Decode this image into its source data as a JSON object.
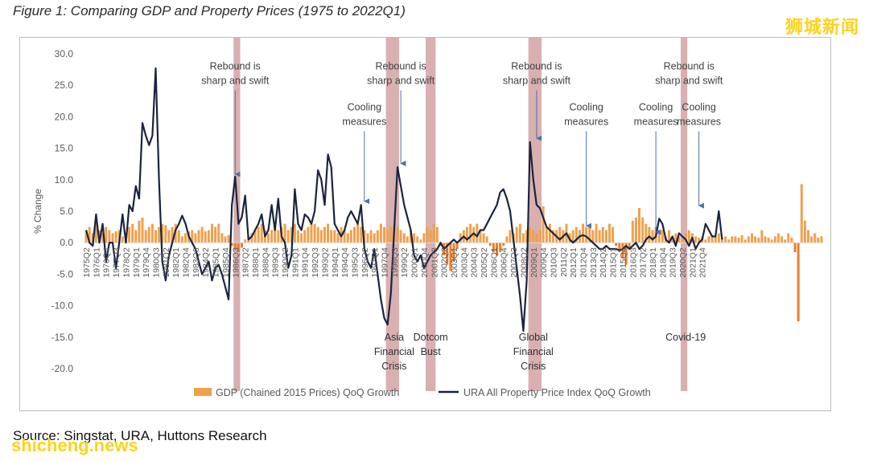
{
  "figure_title": "Figure 1: Comparing GDP and Property Prices (1975 to 2022Q1)",
  "watermark_top": "狮城新闻",
  "watermark_bottom": "shicheng.news",
  "source": "Source: Singstat, URA, Huttons Research",
  "colors": {
    "gdp": "#f0a04b",
    "gdp_negative": "#ef7d28",
    "price": "#1a2440",
    "band": "#c98e8e",
    "axis": "#d9d9d9",
    "text": "#595959",
    "arrow": "#4f6fa8"
  },
  "chart_data": {
    "type": "bar+line",
    "ylabel": "% Change",
    "ylim": [
      -20,
      30
    ],
    "yticks": [
      "30.0",
      "25.0",
      "20.0",
      "15.0",
      "10.0",
      "5.0",
      "0.0",
      "-5.0",
      "-10.0",
      "-15.0",
      "-20.0"
    ],
    "xlabel_ticks": [
      "1975Q2",
      "1976Q1",
      "1976Q4",
      "1977Q3",
      "1978Q2",
      "1979Q1",
      "1979Q4",
      "1980Q3",
      "1981Q2",
      "1982Q1",
      "1982Q4",
      "1983Q3",
      "1984Q2",
      "1985Q1",
      "1985Q4",
      "1986Q3",
      "1987Q2",
      "1988Q1",
      "1988Q4",
      "1989Q3",
      "1990Q2",
      "1991Q1",
      "1991Q4",
      "1992Q3",
      "1993Q2",
      "1994Q1",
      "1994Q4",
      "1995Q3",
      "1996Q2",
      "1997Q1",
      "1997Q4",
      "1998Q3",
      "1999Q2",
      "2000Q1",
      "2000Q4",
      "2001Q3",
      "2002Q2",
      "2003Q1",
      "2003Q4",
      "2004Q3",
      "2005Q2",
      "2006Q1",
      "2006Q4",
      "2007Q3",
      "2008Q2",
      "2009Q1",
      "2009Q4",
      "2010Q3",
      "2011Q2",
      "2012Q1",
      "2012Q4",
      "2013Q3",
      "2014Q2",
      "2015Q1",
      "2015Q4",
      "2016Q3",
      "2017Q2",
      "2018Q1",
      "2018Q4",
      "2019Q3",
      "2020Q2",
      "2021Q1",
      "2021Q4"
    ],
    "label_start": 0,
    "label_step": 3,
    "series": [
      {
        "name": "GDP (Chained 2015 Prices) QoQ Growth",
        "kind": "bar",
        "values": [
          2.0,
          2.5,
          1.5,
          3.0,
          2.0,
          1.5,
          2.5,
          2.0,
          1.5,
          1.8,
          2.0,
          1.0,
          1.5,
          2.5,
          3.0,
          2.0,
          3.5,
          4.0,
          2.0,
          2.5,
          3.0,
          2.0,
          2.5,
          3.0,
          2.8,
          2.0,
          2.5,
          3.0,
          2.0,
          1.0,
          1.5,
          1.8,
          2.0,
          1.5,
          2.0,
          2.5,
          1.8,
          2.0,
          3.0,
          2.5,
          3.0,
          1.5,
          1.0,
          1.2,
          -0.5,
          -1.0,
          -1.5,
          -0.8,
          0.5,
          1.0,
          1.5,
          2.0,
          2.5,
          3.0,
          2.0,
          1.5,
          2.0,
          2.5,
          2.0,
          2.5,
          3.0,
          2.0,
          2.5,
          3.0,
          2.0,
          1.5,
          2.0,
          2.5,
          3.5,
          3.0,
          2.5,
          2.0,
          2.5,
          3.0,
          2.0,
          2.0,
          1.5,
          2.5,
          2.0,
          1.5,
          2.0,
          2.5,
          3.0,
          2.5,
          2.0,
          1.5,
          2.0,
          1.5,
          2.0,
          3.0,
          2.5,
          2.0,
          2.5,
          3.0,
          2.5,
          2.0,
          1.5,
          1.0,
          2.0,
          1.5,
          1.0,
          0.5,
          1.5,
          2.5,
          2.0,
          3.0,
          2.5,
          -0.5,
          -2.0,
          -3.5,
          -4.5,
          -3.0,
          -1.0,
          1.5,
          2.0,
          2.5,
          3.0,
          2.5,
          3.0,
          2.0,
          1.5,
          1.0,
          -0.5,
          -1.5,
          -2.0,
          -1.5,
          -0.5,
          1.0,
          2.0,
          1.5,
          2.5,
          3.0,
          1.5,
          2.0,
          2.5,
          2.0,
          1.5,
          2.0,
          5.8,
          2.5,
          3.0,
          2.0,
          2.0,
          2.5,
          2.0,
          3.0,
          1.5,
          2.0,
          2.5,
          2.0,
          3.0,
          2.5,
          2.5,
          2.0,
          3.0,
          2.0,
          2.5,
          2.0,
          3.0,
          2.5,
          -0.5,
          -1.5,
          -2.5,
          -3.5,
          -1.0,
          3.5,
          4.0,
          5.5,
          4.0,
          3.0,
          2.5,
          2.0,
          2.5,
          1.5,
          2.0,
          1.0,
          2.0,
          1.0,
          1.5,
          1.0,
          0.5,
          1.5,
          2.0,
          1.5,
          1.0,
          0.8,
          1.0,
          0.5,
          1.0,
          1.2,
          1.0,
          1.5,
          0.8,
          1.0,
          0.5,
          1.0,
          1.0,
          0.8,
          1.2,
          0.5,
          1.0,
          1.5,
          1.0,
          0.8,
          2.0,
          1.0,
          0.8,
          0.5,
          1.0,
          1.5,
          1.0,
          0.5,
          1.5,
          0.8,
          -1.5,
          -12.5,
          9.3,
          3.5,
          2.0,
          1.0,
          1.5,
          0.8,
          1.0
        ]
      },
      {
        "name": "URA All Property Price Index QoQ Growth",
        "kind": "line",
        "values": [
          2.0,
          0.0,
          -0.5,
          4.5,
          0.0,
          3.0,
          -3.0,
          0.0,
          0.0,
          -4.0,
          0.0,
          4.5,
          0.0,
          6.0,
          5.0,
          9.0,
          7.0,
          19.0,
          17.0,
          15.5,
          17.0,
          27.7,
          10.0,
          -3.0,
          -6.0,
          -2.0,
          0.0,
          2.0,
          3.0,
          4.3,
          3.0,
          1.0,
          0.0,
          -1.0,
          -3.0,
          -5.0,
          -4.0,
          -3.0,
          -6.0,
          -4.0,
          -3.5,
          -5.0,
          -7.0,
          -9.0,
          6.0,
          10.5,
          3.0,
          4.0,
          7.5,
          0.5,
          1.0,
          2.0,
          3.0,
          4.5,
          1.0,
          2.0,
          6.0,
          2.0,
          7.0,
          1.0,
          0.0,
          -4.0,
          -2.0,
          8.5,
          3.0,
          2.0,
          4.5,
          4.0,
          3.0,
          5.0,
          11.5,
          10.0,
          6.0,
          14.0,
          12.0,
          3.0,
          2.0,
          1.0,
          2.0,
          4.0,
          5.0,
          4.0,
          3.0,
          6.0,
          -1.0,
          -3.0,
          -4.0,
          -1.0,
          -5.0,
          -9.0,
          -12.0,
          -13.0,
          -8.0,
          2.0,
          12.0,
          9.0,
          6.0,
          4.0,
          2.0,
          -2.0,
          -3.0,
          -2.0,
          -4.0,
          -3.0,
          -2.0,
          -1.5,
          -1.0,
          0.0,
          -1.0,
          -0.5,
          0.0,
          0.5,
          0.0,
          0.5,
          1.0,
          0.5,
          1.0,
          1.5,
          1.0,
          2.0,
          2.0,
          3.0,
          4.0,
          5.0,
          6.0,
          8.0,
          8.5,
          7.0,
          5.0,
          0.5,
          -4.0,
          -8.5,
          -14.0,
          -6.0,
          16.0,
          10.0,
          6.0,
          5.5,
          4.0,
          2.5,
          2.0,
          1.5,
          1.0,
          0.5,
          1.0,
          1.5,
          0.5,
          0.0,
          0.5,
          1.0,
          1.2,
          1.0,
          0.5,
          0.0,
          -0.5,
          -1.0,
          -1.0,
          -0.5,
          -1.0,
          -1.0,
          -1.0,
          -1.2,
          -1.0,
          -0.5,
          -1.0,
          -0.5,
          0.0,
          -1.0,
          -0.5,
          0.5,
          1.0,
          0.5,
          1.0,
          3.8,
          3.0,
          0.5,
          0.0,
          1.0,
          -0.5,
          1.5,
          1.0,
          0.5,
          -0.5,
          0.8,
          -1.0,
          0.0,
          0.5,
          3.0,
          2.0,
          1.0,
          1.0,
          5.0,
          0.5
        ]
      }
    ],
    "shaded_periods": [
      {
        "start_quarter": 45,
        "end_quarter": 46
      },
      {
        "start_quarter": 91,
        "end_quarter": 94
      },
      {
        "start_quarter": 103,
        "end_quarter": 105
      },
      {
        "start_quarter": 134,
        "end_quarter": 137
      },
      {
        "start_quarter": 180,
        "end_quarter": 181
      }
    ],
    "annotations": [
      {
        "lines": [
          "Rebound is",
          "sharp and swift"
        ],
        "quarter": 45,
        "y_text": 27.5,
        "arrow_to": 10.5
      },
      {
        "lines": [
          "Cooling",
          "measures"
        ],
        "quarter": 84,
        "y_text": 21.0,
        "arrow_to": 6.2
      },
      {
        "lines": [
          "Rebound is",
          "sharp and swift"
        ],
        "quarter": 95,
        "y_text": 27.5,
        "arrow_to": 12.2
      },
      {
        "lines": [
          "Rebound is",
          "sharp and swift"
        ],
        "quarter": 136,
        "y_text": 27.5,
        "arrow_to": 16.2
      },
      {
        "lines": [
          "Cooling",
          "measures"
        ],
        "quarter": 151,
        "y_text": 21.0,
        "arrow_to": 2.3
      },
      {
        "lines": [
          "Cooling",
          "measures"
        ],
        "quarter": 172,
        "y_text": 21.0,
        "arrow_to": 1.3
      },
      {
        "lines": [
          "Rebound is",
          "sharp and swift"
        ],
        "quarter": 182,
        "y_text": 27.5,
        "arrow_to": null
      },
      {
        "lines": [
          "Cooling",
          "measures"
        ],
        "quarter": 185,
        "y_text": 21.0,
        "arrow_to": 5.5
      }
    ],
    "bottom_labels": [
      {
        "lines": [
          "Asia",
          "Financial",
          "Crisis"
        ],
        "quarter": 93
      },
      {
        "lines": [
          "Dotcom",
          "Bust"
        ],
        "quarter": 104
      },
      {
        "lines": [
          "Global",
          "Financial",
          "Crisis"
        ],
        "quarter": 135
      },
      {
        "lines": [
          "Covid-19"
        ],
        "quarter": 181
      }
    ],
    "legend": [
      {
        "name": "GDP (Chained 2015 Prices) QoQ Growth",
        "kind": "bar"
      },
      {
        "name": "URA All Property Price Index QoQ Growth",
        "kind": "line"
      }
    ],
    "legend_position": "bottom",
    "grid": false
  }
}
